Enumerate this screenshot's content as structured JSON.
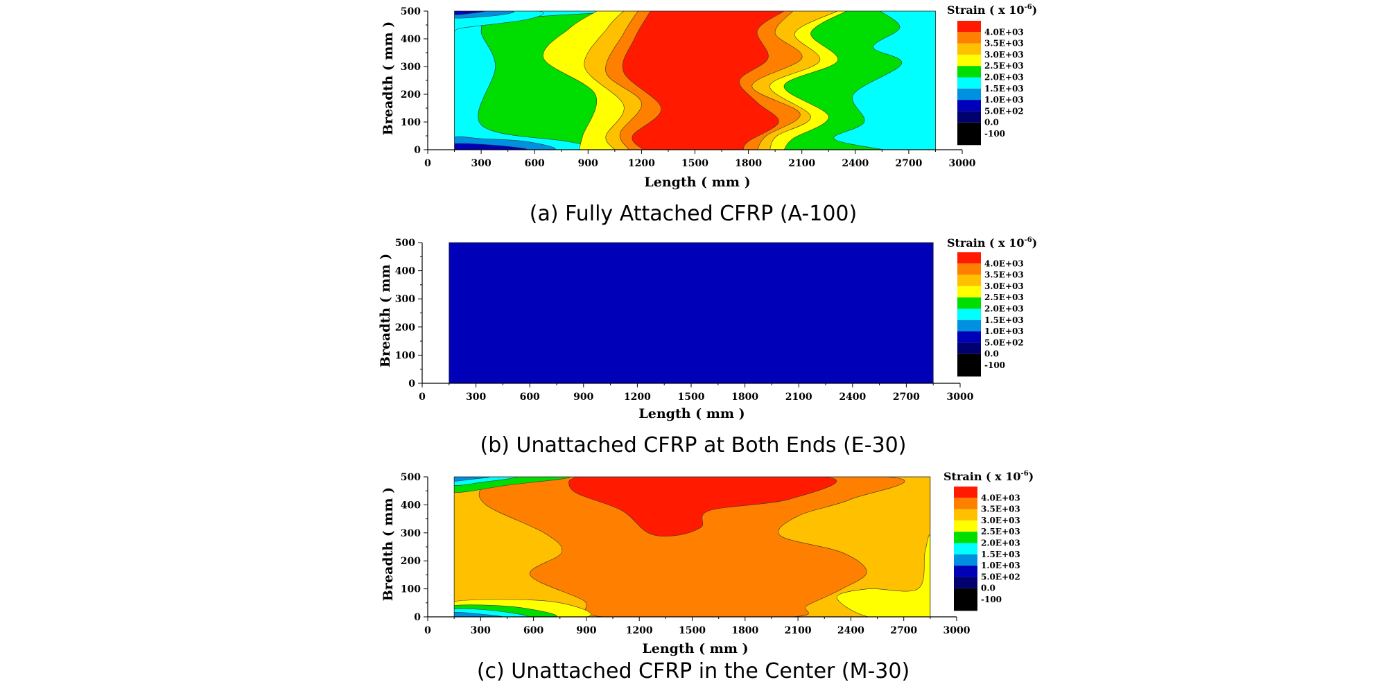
{
  "legend": {
    "title_prefix": "Strain ( x 10",
    "title_exponent": "-6",
    "title_suffix": ")",
    "levels": [
      {
        "label": "4.0E+03",
        "color": "#ff1a00"
      },
      {
        "label": "3.5E+03",
        "color": "#ff7f00"
      },
      {
        "label": "3.0E+03",
        "color": "#ffc000"
      },
      {
        "label": "2.5E+03",
        "color": "#ffff00"
      },
      {
        "label": "2.0E+03",
        "color": "#00dd00"
      },
      {
        "label": "1.5E+03",
        "color": "#00ffff"
      },
      {
        "label": "1.0E+03",
        "color": "#0090e0"
      },
      {
        "label": "5.0E+02",
        "color": "#0000b8"
      },
      {
        "label": "0.0",
        "color": "#00006e"
      },
      {
        "label": "-100",
        "color": "#000000"
      }
    ],
    "bottom_color": "#000000"
  },
  "chart_data": [
    {
      "type": "heatmap",
      "caption": "(a) Fully Attached CFRP (A-100)",
      "xlabel": "Length ( mm )",
      "ylabel": "Breadth ( mm )",
      "xlim": [
        0,
        3000
      ],
      "ylim": [
        0,
        500
      ],
      "xticks": [
        "0",
        "300",
        "600",
        "900",
        "1200",
        "1500",
        "1800",
        "2100",
        "2400",
        "2700",
        "3000"
      ],
      "yticks": [
        "0",
        "100",
        "200",
        "300",
        "400",
        "500"
      ],
      "data_extent_x": [
        150,
        2850
      ],
      "background": "#00ffff",
      "bands": [
        {
          "level": "2.5E+03",
          "color": "#00dd00",
          "left": [
            [
              1150,
              500
            ],
            [
              420,
              470
            ],
            [
              300,
              430
            ],
            [
              380,
              300
            ],
            [
              300,
              90
            ],
            [
              780,
              30
            ],
            [
              1050,
              0
            ]
          ],
          "right": [
            [
              2540,
              500
            ],
            [
              2650,
              440
            ],
            [
              2500,
              370
            ],
            [
              2660,
              310
            ],
            [
              2390,
              200
            ],
            [
              2450,
              100
            ],
            [
              2280,
              40
            ],
            [
              2560,
              0
            ]
          ]
        },
        {
          "level": "3.0E+03",
          "color": "#ffff00",
          "left": [
            [
              950,
              500
            ],
            [
              800,
              440
            ],
            [
              650,
              330
            ],
            [
              940,
              200
            ],
            [
              870,
              50
            ],
            [
              850,
              0
            ]
          ],
          "right": [
            [
              2350,
              500
            ],
            [
              2150,
              420
            ],
            [
              2300,
              320
            ],
            [
              2000,
              230
            ],
            [
              2250,
              120
            ],
            [
              2050,
              40
            ],
            [
              2000,
              0
            ]
          ]
        },
        {
          "level": "3.5E+03",
          "color": "#ffc000",
          "left": [
            [
              1100,
              500
            ],
            [
              1010,
              440
            ],
            [
              880,
              300
            ],
            [
              1100,
              160
            ],
            [
              1000,
              50
            ],
            [
              1050,
              0
            ]
          ],
          "right": [
            [
              2300,
              500
            ],
            [
              2060,
              420
            ],
            [
              2200,
              320
            ],
            [
              1920,
              230
            ],
            [
              2150,
              120
            ],
            [
              1960,
              50
            ],
            [
              1920,
              0
            ]
          ]
        },
        {
          "level": "4.0E+03",
          "color": "#ff7f00",
          "left": [
            [
              1180,
              500
            ],
            [
              1100,
              420
            ],
            [
              1000,
              280
            ],
            [
              1200,
              170
            ],
            [
              1080,
              60
            ],
            [
              1130,
              0
            ]
          ],
          "right": [
            [
              2050,
              500
            ],
            [
              1950,
              420
            ],
            [
              2100,
              330
            ],
            [
              1820,
              230
            ],
            [
              2090,
              130
            ],
            [
              1900,
              50
            ],
            [
              1850,
              0
            ]
          ]
        },
        {
          "level": "4.0E+03",
          "color": "#ff1a00",
          "left": [
            [
              1250,
              500
            ],
            [
              1160,
              400
            ],
            [
              1100,
              280
            ],
            [
              1310,
              150
            ],
            [
              1150,
              50
            ],
            [
              1210,
              0
            ]
          ],
          "right": [
            [
              2000,
              500
            ],
            [
              1850,
              430
            ],
            [
              1910,
              330
            ],
            [
              1750,
              250
            ],
            [
              1850,
              170
            ],
            [
              1970,
              100
            ],
            [
              1800,
              30
            ],
            [
              1770,
              0
            ]
          ]
        }
      ],
      "corner_patches": [
        {
          "level": "1.5E+03",
          "color": "#00ffff",
          "points": [
            [
              150,
              500
            ],
            [
              620,
              500
            ],
            [
              560,
              470
            ],
            [
              200,
              440
            ],
            [
              150,
              430
            ]
          ]
        },
        {
          "level": "1.0E+03",
          "color": "#0090e0",
          "points": [
            [
              150,
              500
            ],
            [
              470,
              500
            ],
            [
              400,
              485
            ],
            [
              150,
              475
            ]
          ]
        },
        {
          "level": "5.0E+02",
          "color": "#0000b8",
          "points": [
            [
              150,
              500
            ],
            [
              320,
              500
            ],
            [
              220,
              490
            ],
            [
              150,
              487
            ]
          ]
        },
        {
          "level": "1.0E+03",
          "color": "#0090e0",
          "points": [
            [
              150,
              0
            ],
            [
              700,
              0
            ],
            [
              550,
              30
            ],
            [
              300,
              40
            ],
            [
              150,
              45
            ]
          ]
        },
        {
          "level": "5.0E+02",
          "color": "#0000b8",
          "points": [
            [
              150,
              0
            ],
            [
              550,
              0
            ],
            [
              400,
              15
            ],
            [
              150,
              22
            ]
          ]
        }
      ]
    },
    {
      "type": "heatmap",
      "caption": "(b) Unattached CFRP at Both Ends (E-30)",
      "xlabel": "Length ( mm )",
      "ylabel": "Breadth ( mm )",
      "xlim": [
        0,
        3000
      ],
      "ylim": [
        0,
        500
      ],
      "xticks": [
        "0",
        "300",
        "600",
        "900",
        "1200",
        "1500",
        "1800",
        "2100",
        "2400",
        "2700",
        "3000"
      ],
      "yticks": [
        "0",
        "100",
        "200",
        "300",
        "400",
        "500"
      ],
      "data_extent_x": [
        150,
        2850
      ],
      "background": "#0000b8",
      "bands": [],
      "corner_patches": []
    },
    {
      "type": "heatmap",
      "caption": "(c) Unattached CFRP in the Center (M-30)",
      "xlabel": "Length ( mm )",
      "ylabel": "Breadth ( mm )",
      "xlim": [
        0,
        3000
      ],
      "ylim": [
        0,
        500
      ],
      "xticks": [
        "0",
        "300",
        "600",
        "900",
        "1200",
        "1500",
        "1800",
        "2100",
        "2400",
        "2700",
        "3000"
      ],
      "yticks": [
        "0",
        "100",
        "200",
        "300",
        "400",
        "500"
      ],
      "data_extent_x": [
        150,
        2850
      ],
      "background": "#ffc000",
      "bands": [],
      "corner_patches": [
        {
          "level": "3.5E+03",
          "color": "#ff7f00",
          "points": [
            [
              620,
              500
            ],
            [
              2600,
              500
            ],
            [
              2400,
              420
            ],
            [
              2100,
              360
            ],
            [
              2000,
              290
            ],
            [
              2350,
              230
            ],
            [
              2490,
              160
            ],
            [
              2350,
              100
            ],
            [
              2150,
              40
            ],
            [
              2060,
              0
            ],
            [
              1000,
              0
            ],
            [
              880,
              60
            ],
            [
              580,
              150
            ],
            [
              760,
              230
            ],
            [
              660,
              300
            ],
            [
              330,
              400
            ],
            [
              330,
              470
            ]
          ]
        },
        {
          "level": "4.0E+03",
          "color": "#ff1a00",
          "points": [
            [
              840,
              500
            ],
            [
              2250,
              500
            ],
            [
              2050,
              420
            ],
            [
              1600,
              380
            ],
            [
              1550,
              320
            ],
            [
              1400,
              290
            ],
            [
              1250,
              300
            ],
            [
              1100,
              380
            ],
            [
              850,
              440
            ],
            [
              800,
              480
            ]
          ]
        },
        {
          "level": "3.0E+03",
          "color": "#ffff00",
          "points": [
            [
              2820,
              0
            ],
            [
              2850,
              0
            ],
            [
              2850,
              280
            ],
            [
              2820,
              230
            ],
            [
              2780,
              100
            ],
            [
              2500,
              100
            ],
            [
              2320,
              70
            ],
            [
              2500,
              0
            ]
          ]
        },
        {
          "level": "2.5E+03",
          "color": "#00dd00",
          "points": [
            [
              150,
              500
            ],
            [
              800,
              500
            ],
            [
              450,
              470
            ],
            [
              150,
              445
            ]
          ]
        },
        {
          "level": "2.0E+03",
          "color": "#00ffff",
          "points": [
            [
              150,
              500
            ],
            [
              500,
              500
            ],
            [
              300,
              480
            ],
            [
              150,
              470
            ]
          ]
        },
        {
          "level": "1.0E+03",
          "color": "#0090e0",
          "points": [
            [
              150,
              500
            ],
            [
              350,
              500
            ],
            [
              230,
              490
            ],
            [
              150,
              485
            ]
          ]
        },
        {
          "level": "3.0E+03",
          "color": "#ffff00",
          "points": [
            [
              150,
              0
            ],
            [
              900,
              0
            ],
            [
              700,
              55
            ],
            [
              150,
              55
            ]
          ]
        },
        {
          "level": "2.5E+03",
          "color": "#00dd00",
          "points": [
            [
              150,
              0
            ],
            [
              720,
              0
            ],
            [
              500,
              35
            ],
            [
              150,
              40
            ]
          ]
        },
        {
          "level": "2.0E+03",
          "color": "#00ffff",
          "points": [
            [
              150,
              0
            ],
            [
              560,
              0
            ],
            [
              380,
              22
            ],
            [
              150,
              28
            ]
          ]
        },
        {
          "level": "1.0E+03",
          "color": "#0090e0",
          "points": [
            [
              150,
              0
            ],
            [
              420,
              0
            ],
            [
              260,
              12
            ],
            [
              150,
              16
            ]
          ]
        }
      ]
    }
  ]
}
